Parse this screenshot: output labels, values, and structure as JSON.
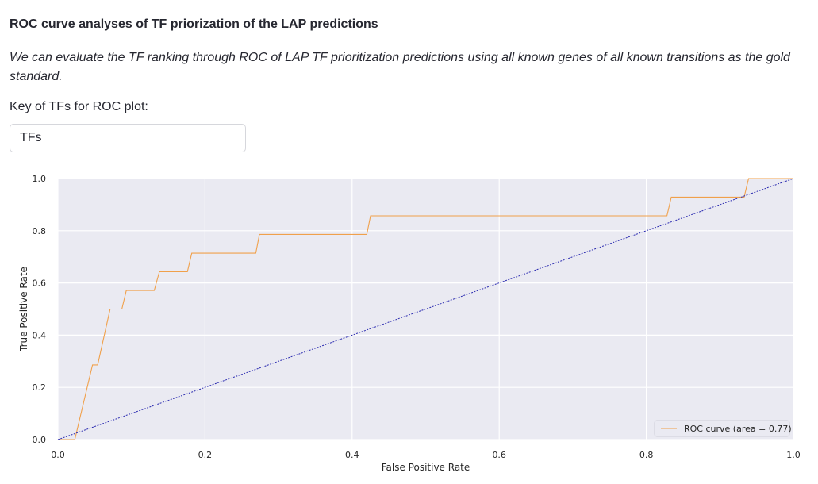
{
  "page": {
    "title": "ROC curve analyses of TF priorization of the LAP predictions",
    "description": "We can evaluate the TF ranking through ROC of LAP TF prioritization predictions using all known genes of all known transitions as the gold standard.",
    "field_label": "Key of TFs for ROC plot:",
    "field_value": "TFs"
  },
  "chart_data": {
    "type": "line",
    "xlabel": "False Positive Rate",
    "ylabel": "True Positive Rate",
    "xlim": [
      0,
      1
    ],
    "ylim": [
      0,
      1
    ],
    "x_ticks": [
      "0.0",
      "0.2",
      "0.4",
      "0.6",
      "0.8",
      "1.0"
    ],
    "y_ticks": [
      "0.0",
      "0.2",
      "0.4",
      "0.6",
      "0.8",
      "1.0"
    ],
    "grid": true,
    "legend_position": "lower-right",
    "colors": {
      "roc": "#f0a04b",
      "diagonal": "#2b2bb0",
      "plot_bg": "#eaeaf2",
      "grid": "#ffffff"
    },
    "series": [
      {
        "name": "ROC curve (area = 0.77)",
        "style": "solid",
        "x": [
          0.0,
          0.023,
          0.047,
          0.054,
          0.071,
          0.087,
          0.093,
          0.131,
          0.138,
          0.176,
          0.182,
          0.269,
          0.274,
          0.42,
          0.425,
          0.828,
          0.834,
          0.933,
          0.939,
          1.0
        ],
        "y": [
          0.0,
          0.0,
          0.286,
          0.286,
          0.5,
          0.5,
          0.571,
          0.571,
          0.643,
          0.643,
          0.714,
          0.714,
          0.786,
          0.786,
          0.857,
          0.857,
          0.929,
          0.929,
          1.0,
          1.0
        ]
      },
      {
        "style": "dashed",
        "x": [
          0,
          1
        ],
        "y": [
          0,
          1
        ]
      }
    ]
  }
}
